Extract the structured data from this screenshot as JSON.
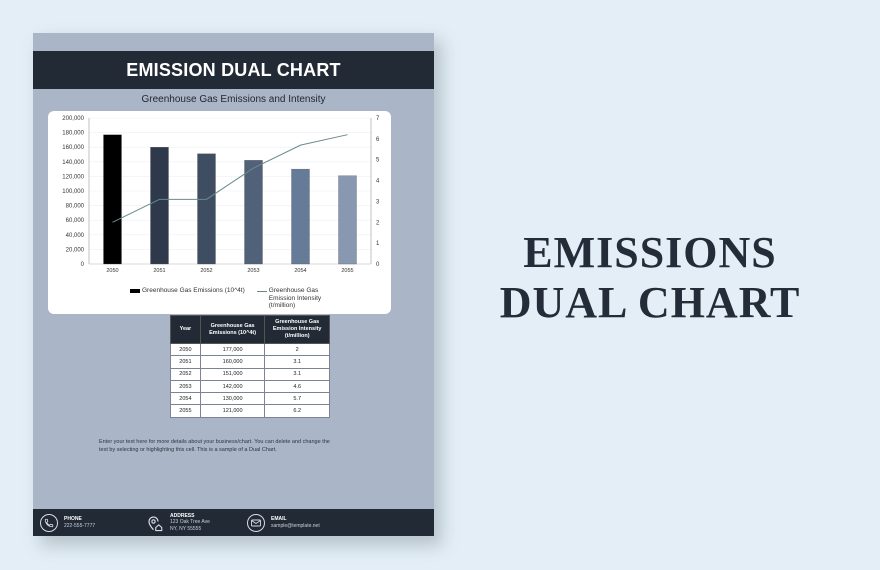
{
  "document": {
    "title": "EMISSION DUAL CHART",
    "chart_title": "Greenhouse Gas Emissions and Intensity",
    "legend": {
      "bar_label": "Greenhouse Gas Emissions (10^4t)",
      "line_label": "Greenhouse Gas Emission Intensity (t/million)"
    },
    "table": {
      "headers": [
        "Year",
        "Greenhouse Gas Emissions (10^4t)",
        "Greenhouse Gas Emission Intensity (t/million)"
      ],
      "rows": [
        [
          "2050",
          "177,000",
          "2"
        ],
        [
          "2051",
          "160,000",
          "3.1"
        ],
        [
          "2052",
          "151,000",
          "3.1"
        ],
        [
          "2053",
          "142,000",
          "4.6"
        ],
        [
          "2054",
          "130,000",
          "5.7"
        ],
        [
          "2055",
          "121,000",
          "6.2"
        ]
      ]
    },
    "body_text": "Enter your text here for more details about your business/chart. You can delete and change the text by selecting or highlighting this cell. This is a sample of a Dual Chart.",
    "footer": {
      "phone": {
        "label": "PHONE",
        "value": "222-555-7777",
        "icon": "phone-icon"
      },
      "address": {
        "label": "ADDRESS",
        "line1": "123 Oak Tree Ave",
        "line2": "NY, NY 55555",
        "icon": "location-icon"
      },
      "email": {
        "label": "EMAIL",
        "value": "sample@template.net",
        "icon": "mail-icon"
      }
    }
  },
  "side_title": {
    "line1": "EMISSIONS",
    "line2": "DUAL CHART"
  },
  "colors": {
    "page_bg": "#e3eef6",
    "doc_bg": "#aab5c7",
    "header_bg": "#222a35",
    "bars": [
      "#000000",
      "#2e3a4b",
      "#3f4d62",
      "#506179",
      "#667b98",
      "#8898b0"
    ],
    "line": "#6a8a8a"
  },
  "chart_data": {
    "type": "bar+line",
    "title": "Greenhouse Gas Emissions and Intensity",
    "categories": [
      "2050",
      "2051",
      "2052",
      "2053",
      "2054",
      "2055"
    ],
    "series": [
      {
        "name": "Greenhouse Gas Emissions (10^4t)",
        "type": "bar",
        "axis": "left",
        "values": [
          177000,
          160000,
          151000,
          142000,
          130000,
          121000
        ]
      },
      {
        "name": "Greenhouse Gas Emission Intensity (t/million)",
        "type": "line",
        "axis": "right",
        "values": [
          2,
          3.1,
          3.1,
          4.6,
          5.7,
          6.2
        ]
      }
    ],
    "y_left": {
      "range": [
        0,
        200000
      ],
      "ticks": [
        "0",
        "20,000",
        "40,000",
        "60,000",
        "80,000",
        "100,000",
        "120,000",
        "140,000",
        "160,000",
        "180,000",
        "200,000"
      ]
    },
    "y_right": {
      "range": [
        0,
        7
      ],
      "ticks": [
        "0",
        "1",
        "2",
        "3",
        "4",
        "5",
        "6",
        "7"
      ]
    },
    "grid": true,
    "legend_position": "bottom"
  }
}
